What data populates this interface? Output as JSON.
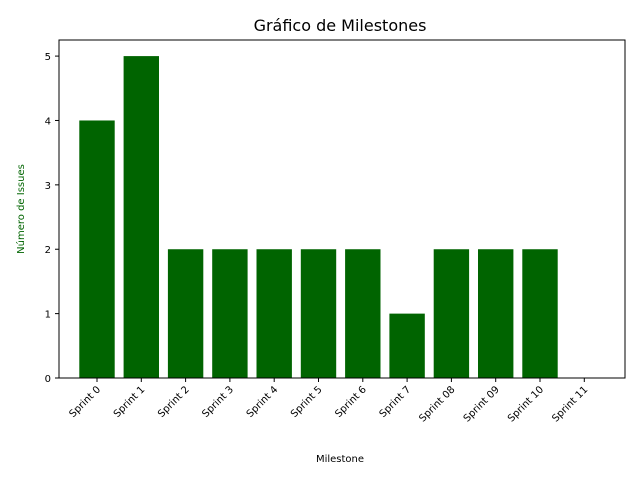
{
  "chart_data": {
    "type": "bar",
    "title": "Gráfico de Milestones",
    "xlabel": "Milestone",
    "ylabel": "Número de Issues",
    "categories": [
      "Sprint 0",
      "Sprint 1",
      "Sprint 2",
      "Sprint 3",
      "Sprint 4",
      "Sprint 5",
      "Sprint 6",
      "Sprint 7",
      "Sprint 08",
      "Sprint 09",
      "Sprint 10",
      "Sprint 11"
    ],
    "values": [
      4,
      5,
      2,
      2,
      2,
      2,
      2,
      1,
      2,
      2,
      2,
      0
    ],
    "ylim": [
      0,
      5.25
    ],
    "yticks": [
      0,
      1,
      2,
      3,
      4,
      5
    ],
    "grid": false,
    "bar_color": "#006400",
    "ylabel_color": "#006400"
  }
}
